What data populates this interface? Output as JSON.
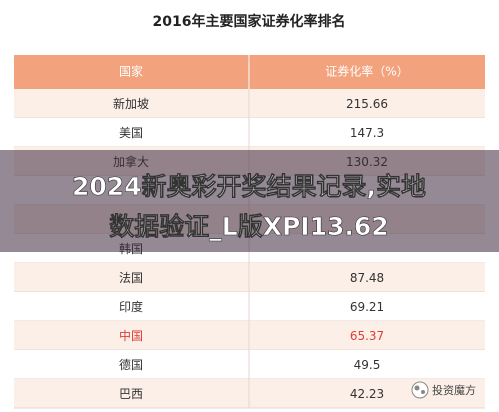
{
  "header": {
    "title": "2016年主要国家证券化率排名"
  },
  "table": {
    "columns": [
      "国家",
      "证券化率（%）"
    ],
    "rows": [
      {
        "country": "新加坡",
        "value": "215.66"
      },
      {
        "country": "美国",
        "value": "147.3"
      },
      {
        "country": "加拿大",
        "value": "130.32"
      },
      {
        "country": "韩国"
      },
      {
        "country": "法国",
        "value": "87.48"
      },
      {
        "country": "印度",
        "value": "69.21"
      },
      {
        "country": "中国",
        "value": "65.37",
        "color": "#e03c31"
      },
      {
        "country": "德国",
        "value": "49.5"
      },
      {
        "country": "巴西",
        "value": "42.23"
      }
    ]
  },
  "overlay": {
    "lines": [
      "2024新奥彩开奖结果记录,实地",
      "数据验证_L版XPI13.62"
    ]
  },
  "watermark": {
    "text": "投资魔方"
  }
}
